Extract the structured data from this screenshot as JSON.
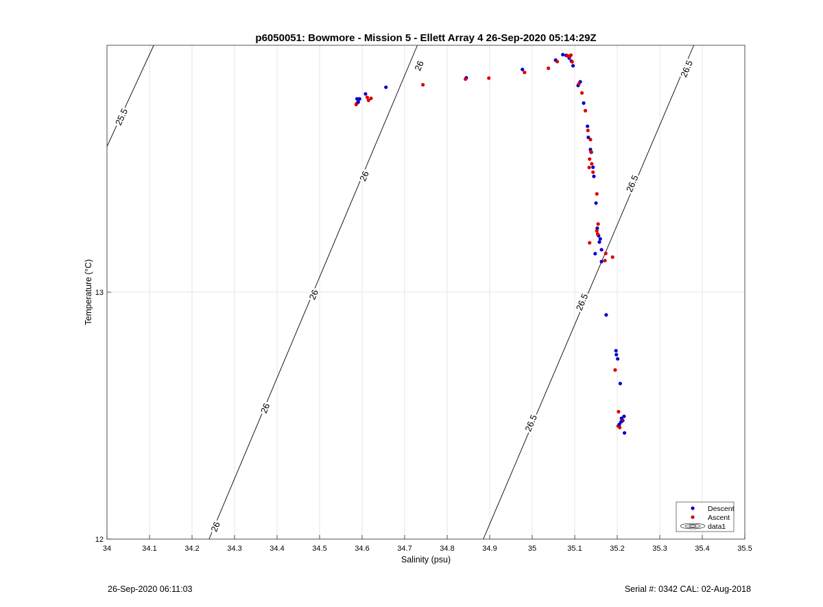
{
  "chart_data": {
    "type": "scatter",
    "title": "p6050051: Bowmore - Mission 5 - Ellett Array 4 26-Sep-2020 05:14:29Z",
    "xlabel": "Salinity (psu)",
    "ylabel": "Temperature (°C)",
    "xlim": [
      34.0,
      35.5
    ],
    "ylim": [
      12.0,
      14.0
    ],
    "x_ticks": [
      "34",
      "34.1",
      "34.2",
      "34.3",
      "34.4",
      "34.5",
      "34.6",
      "34.7",
      "34.8",
      "34.9",
      "35",
      "35.1",
      "35.2",
      "35.3",
      "35.4",
      "35.5"
    ],
    "y_ticks": [
      "12",
      "13"
    ],
    "grid": true,
    "legend_placement": "bottom-right",
    "series": [
      {
        "name": "Descent",
        "color": "#0000cc",
        "points": [
          [
            34.588,
            13.783
          ],
          [
            34.594,
            13.783
          ],
          [
            34.591,
            13.77
          ],
          [
            34.608,
            13.803
          ],
          [
            34.656,
            13.83
          ],
          [
            34.845,
            13.868
          ],
          [
            34.977,
            13.902
          ],
          [
            35.055,
            13.94
          ],
          [
            35.072,
            13.962
          ],
          [
            35.08,
            13.959
          ],
          [
            35.087,
            13.948
          ],
          [
            35.092,
            13.936
          ],
          [
            35.096,
            13.917
          ],
          [
            35.108,
            13.837
          ],
          [
            35.113,
            13.852
          ],
          [
            35.121,
            13.766
          ],
          [
            35.13,
            13.672
          ],
          [
            35.132,
            13.627
          ],
          [
            35.137,
            13.578
          ],
          [
            35.139,
            13.567
          ],
          [
            35.143,
            13.506
          ],
          [
            35.145,
            13.469
          ],
          [
            35.15,
            13.361
          ],
          [
            35.153,
            13.259
          ],
          [
            35.156,
            13.229
          ],
          [
            35.16,
            13.216
          ],
          [
            35.158,
            13.203
          ],
          [
            35.163,
            13.172
          ],
          [
            35.148,
            13.156
          ],
          [
            35.163,
            13.124
          ],
          [
            35.174,
            12.908
          ],
          [
            35.197,
            12.763
          ],
          [
            35.198,
            12.747
          ],
          [
            35.201,
            12.73
          ],
          [
            35.207,
            12.63
          ],
          [
            35.21,
            12.489
          ],
          [
            35.216,
            12.497
          ],
          [
            35.213,
            12.48
          ],
          [
            35.209,
            12.475
          ],
          [
            35.205,
            12.465
          ],
          [
            35.217,
            12.43
          ]
        ]
      },
      {
        "name": "Ascent",
        "color": "#dd0000",
        "points": [
          [
            34.588,
            13.766
          ],
          [
            34.586,
            13.76
          ],
          [
            34.612,
            13.789
          ],
          [
            34.621,
            13.785
          ],
          [
            34.615,
            13.777
          ],
          [
            34.743,
            13.84
          ],
          [
            34.843,
            13.863
          ],
          [
            34.898,
            13.867
          ],
          [
            34.982,
            13.89
          ],
          [
            35.038,
            13.907
          ],
          [
            35.059,
            13.934
          ],
          [
            35.083,
            13.958
          ],
          [
            35.088,
            13.954
          ],
          [
            35.091,
            13.96
          ],
          [
            35.094,
            13.933
          ],
          [
            35.11,
            13.845
          ],
          [
            35.117,
            13.807
          ],
          [
            35.125,
            13.735
          ],
          [
            35.131,
            13.655
          ],
          [
            35.137,
            13.618
          ],
          [
            35.138,
            13.569
          ],
          [
            35.135,
            13.539
          ],
          [
            35.14,
            13.52
          ],
          [
            35.134,
            13.505
          ],
          [
            35.143,
            13.486
          ],
          [
            35.152,
            13.398
          ],
          [
            35.155,
            13.276
          ],
          [
            35.152,
            13.248
          ],
          [
            35.135,
            13.2
          ],
          [
            35.154,
            13.235
          ],
          [
            35.173,
            13.157
          ],
          [
            35.189,
            13.142
          ],
          [
            35.171,
            13.128
          ],
          [
            35.195,
            12.685
          ],
          [
            35.203,
            12.516
          ],
          [
            35.202,
            12.458
          ],
          [
            35.206,
            12.452
          ],
          [
            35.211,
            12.478
          ]
        ]
      }
    ],
    "contours": [
      {
        "level_label": "25.5",
        "points": [
          [
            34.0,
            13.59
          ],
          [
            34.11,
            14.0
          ]
        ],
        "labels_at": [
          [
            34.034,
            13.71
          ]
        ]
      },
      {
        "level_label": "26",
        "points": [
          [
            34.24,
            12.0
          ],
          [
            34.73,
            14.0
          ]
        ],
        "labels_at": [
          [
            34.255,
            12.05
          ],
          [
            34.372,
            12.53
          ],
          [
            34.486,
            12.99
          ],
          [
            34.605,
            13.47
          ],
          [
            34.734,
            13.917
          ]
        ]
      },
      {
        "level_label": "26.5",
        "points": [
          [
            34.885,
            12.0
          ],
          [
            35.38,
            14.0
          ]
        ],
        "labels_at": [
          [
            34.997,
            12.47
          ],
          [
            35.117,
            12.96
          ],
          [
            35.235,
            13.44
          ],
          [
            35.363,
            13.905
          ]
        ]
      }
    ]
  },
  "legend": {
    "items": [
      {
        "label": "Descent",
        "marker": "dot",
        "color": "#0000cc"
      },
      {
        "label": "Ascent",
        "marker": "dot",
        "color": "#dd0000"
      },
      {
        "label": "data1",
        "marker": "contour",
        "color": "#000000"
      }
    ]
  },
  "footer": {
    "left": "26-Sep-2020 06:11:03",
    "right": "Serial #: 0342  CAL: 02-Aug-2018"
  }
}
